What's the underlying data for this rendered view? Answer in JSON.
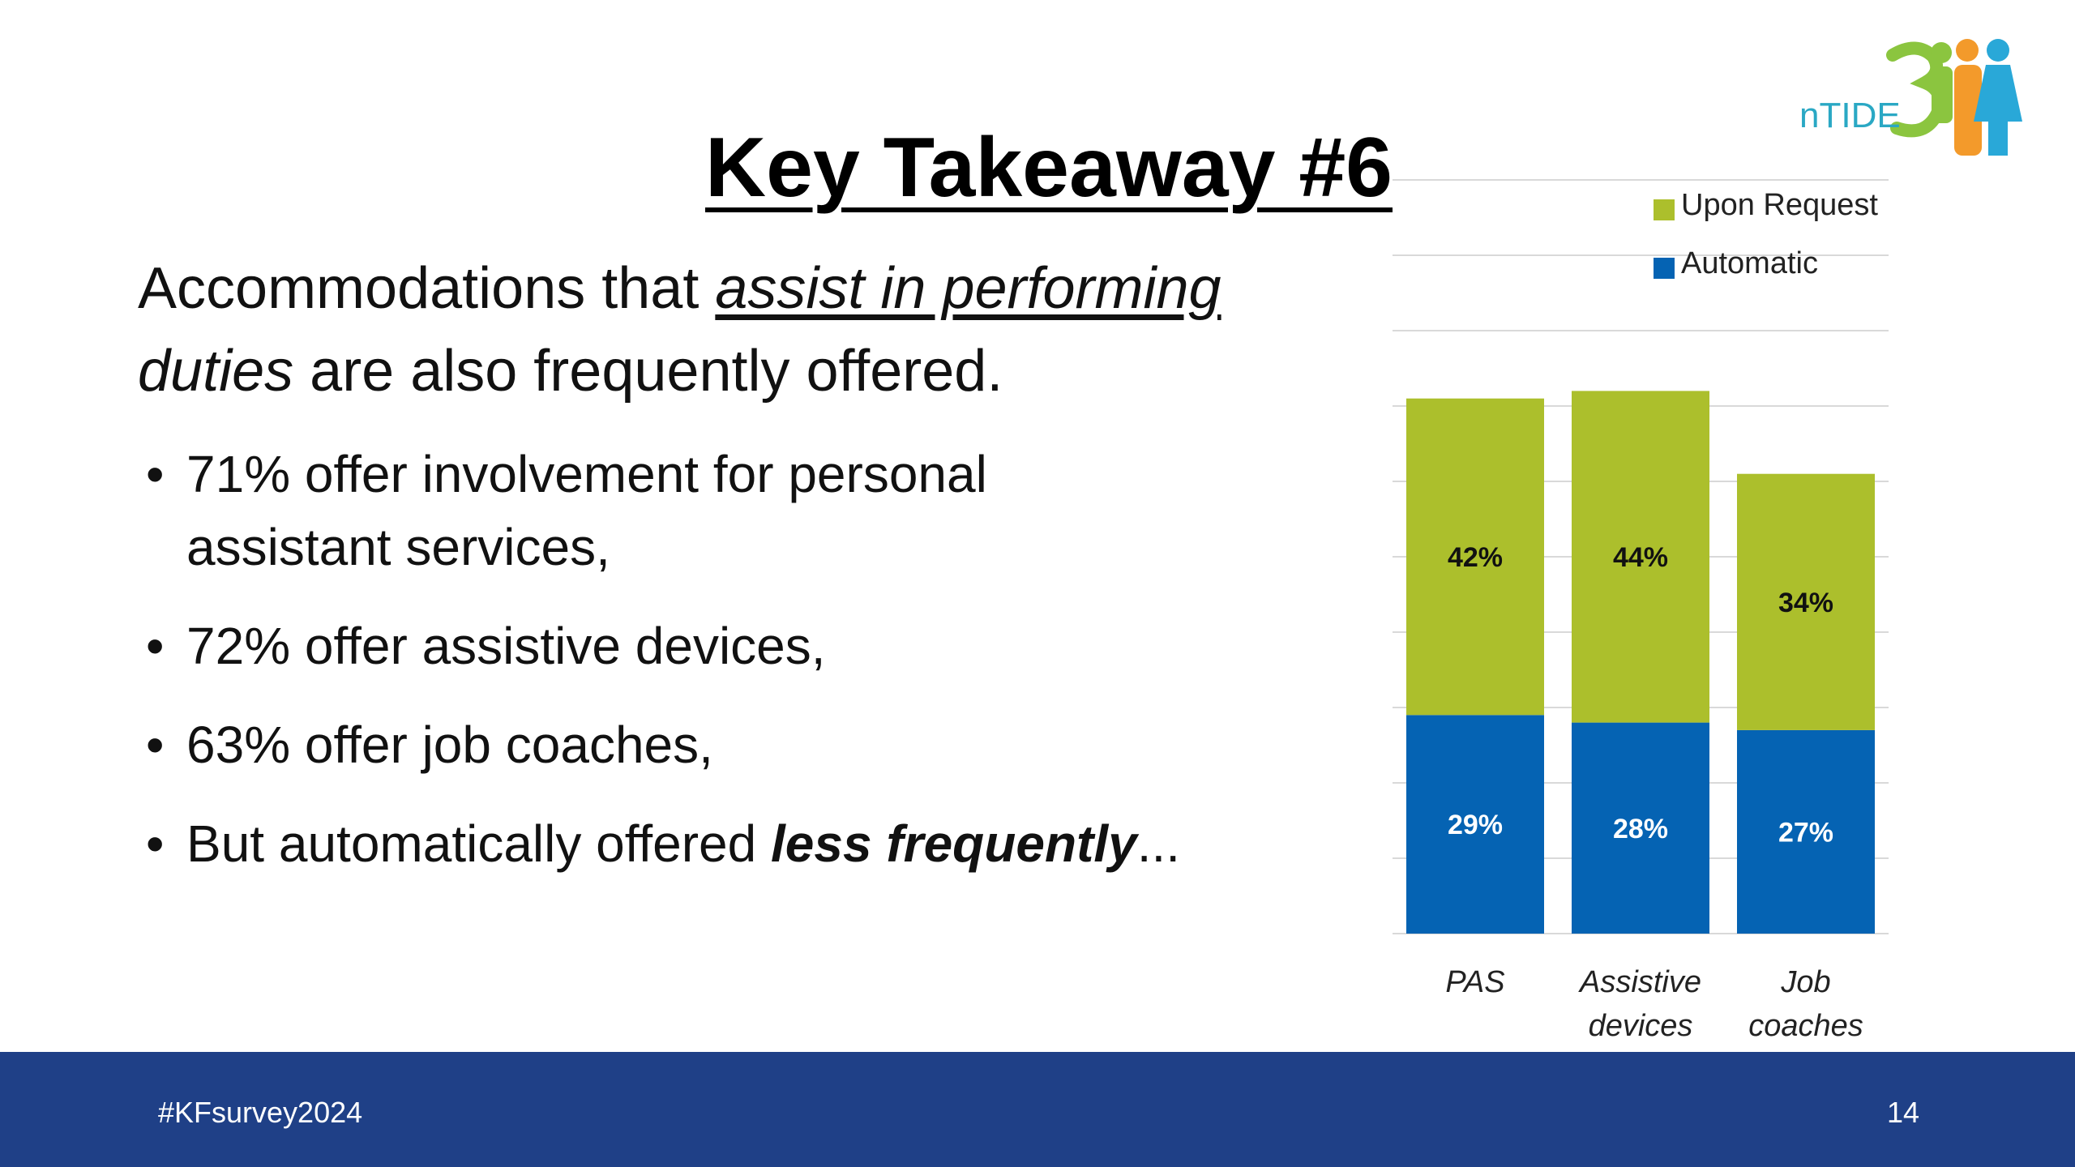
{
  "slide": {
    "title": "Key Takeaway #6",
    "intro_1": "Accommodations that ",
    "intro_italic_underline": "assist in performing",
    "intro_italic": "duties",
    "intro_2": " are also frequently offered.",
    "bullets": [
      "71% offer involvement for personal assistant services,",
      "72% offer assistive devices,",
      "63% offer job coaches,"
    ],
    "last_bullet_prefix": "But automatically offered ",
    "last_bullet_emph": "less frequently",
    "last_bullet_suffix": "...",
    "logo_text": "nTIDE"
  },
  "footer": {
    "hashtag": "#KFsurvey2024",
    "page_number": "14",
    "color": "#1f4087"
  },
  "chart_data": {
    "type": "bar",
    "stacked": true,
    "categories": [
      "PAS",
      "Assistive devices",
      "Job coaches"
    ],
    "category_lines": [
      [
        "PAS"
      ],
      [
        "Assistive",
        "devices"
      ],
      [
        "Job",
        "coaches"
      ]
    ],
    "series": [
      {
        "name": "Automatic",
        "values": [
          29,
          28,
          27
        ],
        "labels": [
          "29%",
          "28%",
          "27%"
        ],
        "color": "#0563b3"
      },
      {
        "name": "Upon Request",
        "values": [
          42,
          44,
          34
        ],
        "labels": [
          "42%",
          "44%",
          "34%"
        ],
        "color": "#acbf2c"
      }
    ],
    "legend": [
      "Upon Request",
      "Automatic"
    ],
    "legend_position": "top-right",
    "ylim": [
      0,
      100
    ],
    "grid": true,
    "xlabel": "",
    "ylabel": ""
  }
}
